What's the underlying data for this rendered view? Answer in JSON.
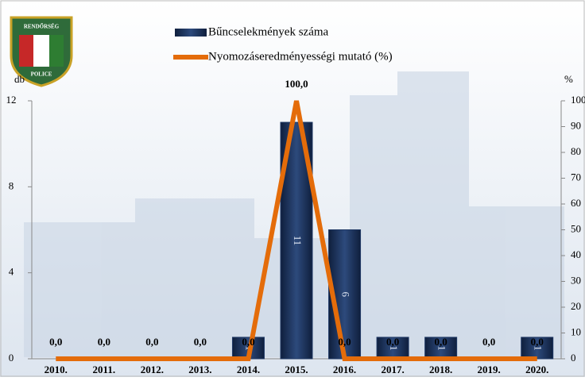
{
  "logo_text": [
    "RENDŐRSÉG",
    "POLICE"
  ],
  "chart_data": {
    "type": "bar",
    "categories": [
      "2010.",
      "2011.",
      "2012.",
      "2013.",
      "2014.",
      "2015.",
      "2016.",
      "2017.",
      "2018.",
      "2019.",
      "2020."
    ],
    "series": [
      {
        "name": "Bűncselekmények száma",
        "type": "bar",
        "color": "#1f3864",
        "values": [
          0,
          0,
          0,
          0,
          1,
          11,
          6,
          1,
          1,
          0,
          1
        ]
      },
      {
        "name": "Nyomozáseredményességi mutató (%)",
        "type": "line",
        "axis": "y2",
        "color": "#e46c0a",
        "values": [
          0,
          0,
          0,
          0,
          0,
          100,
          0,
          0,
          0,
          0,
          0
        ],
        "value_labels": [
          "0,0",
          "0,0",
          "0,0",
          "0,0",
          "0,0",
          "100,0",
          "0,0",
          "0,0",
          "0,0",
          "0,0",
          "0,0"
        ]
      }
    ],
    "ylabel": "db",
    "y2label": "%",
    "ylim": [
      0,
      12
    ],
    "yticks": [
      0,
      4,
      8,
      12
    ],
    "y2lim": [
      0,
      100
    ],
    "y2ticks": [
      0,
      10,
      20,
      30,
      40,
      50,
      60,
      70,
      80,
      90,
      100
    ]
  }
}
